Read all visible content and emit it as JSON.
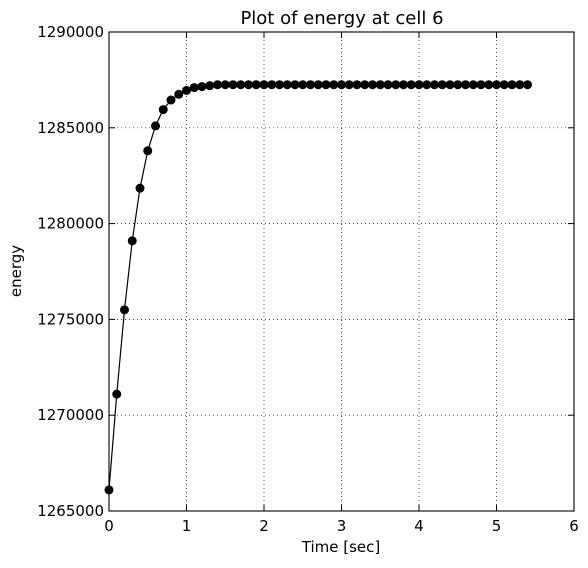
{
  "chart_data": {
    "type": "line",
    "title": "Plot of energy at cell 6",
    "xlabel": "Time [sec]",
    "ylabel": "energy",
    "xlim": [
      0,
      6
    ],
    "ylim": [
      1265000,
      1290000
    ],
    "x_ticks": [
      0,
      1,
      2,
      3,
      4,
      5,
      6
    ],
    "x_tick_labels": [
      "0",
      "1",
      "2",
      "3",
      "4",
      "5",
      "6"
    ],
    "y_ticks": [
      1265000,
      1270000,
      1275000,
      1280000,
      1285000,
      1290000
    ],
    "y_tick_labels": [
      "1265000",
      "1270000",
      "1275000",
      "1280000",
      "1285000",
      "1290000"
    ],
    "grid": true,
    "colors": {
      "series": "#000000",
      "grid": "#000000",
      "background": "#ffffff"
    },
    "series": [
      {
        "marker": "circle",
        "x": [
          0.0,
          0.1,
          0.2,
          0.3,
          0.4,
          0.5,
          0.6,
          0.7,
          0.8,
          0.9,
          1.0,
          1.1,
          1.2,
          1.3,
          1.4,
          1.5,
          1.6,
          1.7,
          1.8,
          1.9,
          2.0,
          2.1,
          2.2,
          2.3,
          2.4,
          2.5,
          2.6,
          2.7,
          2.8,
          2.9,
          3.0,
          3.1,
          3.2,
          3.3,
          3.4,
          3.5,
          3.6,
          3.7,
          3.8,
          3.9,
          4.0,
          4.1,
          4.2,
          4.3,
          4.4,
          4.5,
          4.6,
          4.7,
          4.8,
          4.9,
          5.0,
          5.1,
          5.2,
          5.3,
          5.4
        ],
        "y": [
          1266100,
          1271100,
          1275500,
          1279100,
          1281850,
          1283800,
          1285100,
          1285950,
          1286450,
          1286750,
          1286950,
          1287100,
          1287150,
          1287200,
          1287250,
          1287250,
          1287250,
          1287250,
          1287250,
          1287250,
          1287250,
          1287250,
          1287250,
          1287250,
          1287250,
          1287250,
          1287250,
          1287250,
          1287250,
          1287250,
          1287250,
          1287250,
          1287250,
          1287250,
          1287250,
          1287250,
          1287250,
          1287250,
          1287250,
          1287250,
          1287250,
          1287250,
          1287250,
          1287250,
          1287250,
          1287250,
          1287250,
          1287250,
          1287250,
          1287250,
          1287250,
          1287250,
          1287250,
          1287250,
          1287250
        ]
      }
    ]
  }
}
